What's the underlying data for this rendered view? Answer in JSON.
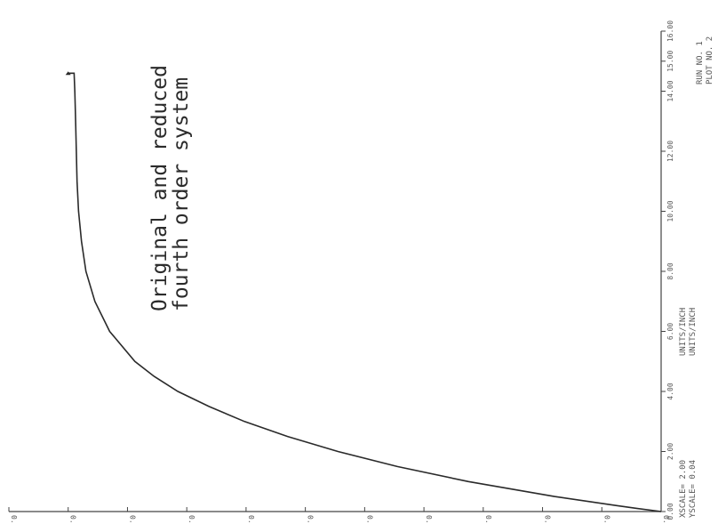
{
  "chart_data": {
    "type": "line",
    "orientation": "rotated-90-ccw",
    "title_lines": [
      "Original and reduced",
      "fourth order system"
    ],
    "x_ticks": [
      "0.00",
      "2.00",
      "4.00",
      "6.00",
      "8.00",
      "10.00",
      "12.00",
      "14.00",
      "15.00",
      "16.00"
    ],
    "y_ticks": [
      "0.00",
      "0.04",
      "0.08",
      "0.12",
      "0.16",
      "0.20",
      "0.24",
      "0.28",
      "0.32",
      "0.36",
      "0.40",
      "0.44"
    ],
    "xlim": [
      0,
      16
    ],
    "ylim": [
      0,
      0.44
    ],
    "series": [
      {
        "x": [
          0.0,
          0.1,
          0.2,
          0.5,
          1.0,
          1.5,
          2.0,
          2.5,
          3.0,
          3.5,
          4.0,
          4.5,
          5.0,
          6.0,
          7.0,
          8.0,
          9.0,
          10.0,
          11.0,
          12.0,
          13.0,
          14.0,
          14.6,
          14.6
        ],
        "y": [
          0.0,
          0.016,
          0.03,
          0.072,
          0.13,
          0.178,
          0.218,
          0.252,
          0.281,
          0.305,
          0.326,
          0.342,
          0.355,
          0.372,
          0.382,
          0.388,
          0.391,
          0.393,
          0.394,
          0.3945,
          0.395,
          0.3955,
          0.396,
          0.4
        ]
      }
    ],
    "footer": {
      "xscale_label": "XSCALE= 2.00",
      "xscale_unit": "UNITS/INCH",
      "yscale_label": "YSCALE= 0.04",
      "yscale_unit": "UNITS/INCH",
      "run_label": "RUN NO. 1",
      "plot_label": "PLOT NO. 2"
    }
  }
}
